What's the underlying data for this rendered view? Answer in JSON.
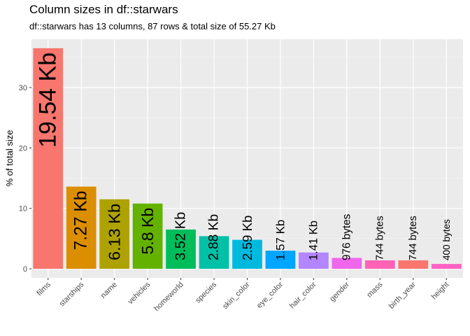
{
  "chart_data": {
    "type": "bar",
    "title": "Column sizes in df::starwars",
    "subtitle": "df::starwars has 13 columns, 87 rows & total size of 55.27 Kb",
    "xlabel": "",
    "ylabel": "% of total size",
    "ylim": [
      0,
      37
    ],
    "yticks": [
      0,
      10,
      20,
      30
    ],
    "grid": true,
    "categories": [
      "films",
      "starships",
      "name",
      "vehicles",
      "homeworld",
      "species",
      "skin_color",
      "eye_color",
      "hair_color",
      "gender",
      "mass",
      "birth_year",
      "height"
    ],
    "values": [
      36.5,
      13.6,
      11.5,
      10.8,
      6.5,
      5.4,
      4.8,
      3.0,
      2.7,
      1.8,
      1.4,
      1.4,
      0.8
    ],
    "labels": [
      "19.54 Kb",
      "7.27 Kb",
      "6.13 Kb",
      "5.8 Kb",
      "3.52 Kb",
      "2.88 Kb",
      "2.59 Kb",
      "1.57 Kb",
      "1.41 Kb",
      "976 bytes",
      "744 bytes",
      "744 bytes",
      "400 bytes"
    ],
    "colors": [
      "#F8766D",
      "#DB8E00",
      "#AEA200",
      "#64B200",
      "#00BD5C",
      "#00C1A7",
      "#00BADE",
      "#00A6FF",
      "#B385FF",
      "#EF67EB",
      "#FF63B6",
      "#F8766D",
      "#FF61C3"
    ]
  }
}
